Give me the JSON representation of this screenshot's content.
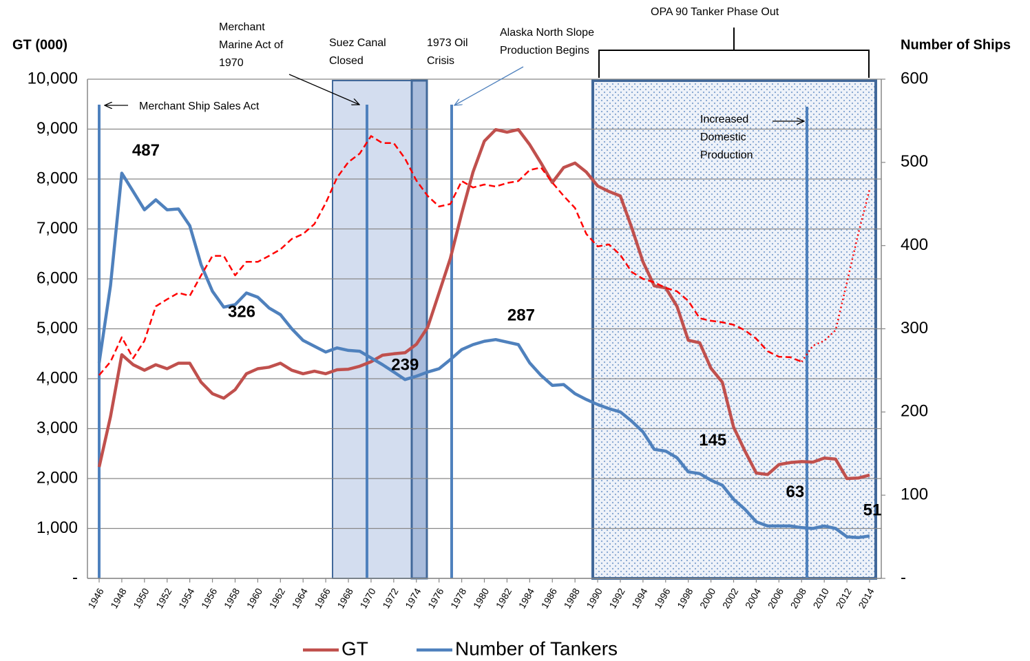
{
  "chart_data": {
    "type": "line",
    "y_label": "GT (000)",
    "y2_label": "Number of Ships",
    "categories": [
      "1946",
      null,
      "1948",
      null,
      "1950",
      null,
      "1952",
      null,
      "1954",
      null,
      "1956",
      null,
      "1958",
      null,
      "1960",
      null,
      "1962",
      null,
      "1964",
      null,
      "1966",
      null,
      "1968",
      null,
      "1970",
      null,
      "1972",
      null,
      "1974",
      null,
      "1976",
      null,
      "1978",
      null,
      "1980",
      null,
      "1982",
      null,
      "1984",
      null,
      "1986",
      null,
      "1988",
      null,
      "1990",
      null,
      "1992",
      null,
      "1994",
      null,
      "1996",
      null,
      "1998",
      null,
      "2000",
      null,
      "2002",
      null,
      "2004",
      null,
      "2006",
      null,
      "2008",
      null,
      "2010",
      null,
      "2012",
      null,
      "2014"
    ],
    "ylim": [
      0,
      10000
    ],
    "yticks": [
      {
        "value": 0,
        "label": "-"
      },
      {
        "value": 1000,
        "label": "1,000"
      },
      {
        "value": 2000,
        "label": "2,000"
      },
      {
        "value": 3000,
        "label": "3,000"
      },
      {
        "value": 4000,
        "label": "4,000"
      },
      {
        "value": 5000,
        "label": "5,000"
      },
      {
        "value": 6000,
        "label": "6,000"
      },
      {
        "value": 7000,
        "label": "7,000"
      },
      {
        "value": 8000,
        "label": "8,000"
      },
      {
        "value": 9000,
        "label": "9,000"
      },
      {
        "value": 10000,
        "label": "10,000"
      }
    ],
    "y2lim": [
      0,
      600
    ],
    "y2ticks": [
      {
        "value": 0,
        "label": "-"
      },
      100,
      200,
      300,
      400,
      500,
      600
    ],
    "grid": true,
    "legend": "bottom",
    "series": [
      {
        "name": "GT",
        "color": "#c0504d",
        "values": [
          2230,
          3240,
          4480,
          4280,
          4170,
          4280,
          4200,
          4310,
          4310,
          3930,
          3700,
          3610,
          3780,
          4100,
          4200,
          4230,
          4310,
          4170,
          4100,
          4150,
          4100,
          4180,
          4190,
          4250,
          4340,
          4470,
          4500,
          4520,
          4690,
          5030,
          5720,
          6410,
          7310,
          8140,
          8760,
          8990,
          8940,
          8990,
          8690,
          8320,
          7930,
          8230,
          8320,
          8140,
          7860,
          7750,
          7660,
          7030,
          6340,
          5860,
          5820,
          5450,
          4770,
          4720,
          4210,
          3930,
          3030,
          2550,
          2110,
          2080,
          2280,
          2320,
          2340,
          2330,
          2410,
          2390,
          2000,
          2010,
          2070
        ]
      },
      {
        "name": "Number of Tankers",
        "color": "#4f81bd",
        "axis": "y2",
        "labeled_points": [
          2,
          11,
          27,
          35,
          51,
          59,
          68
        ],
        "values": [
          259,
          352,
          487,
          465,
          443,
          455,
          443,
          444,
          424,
          377,
          345,
          326,
          329,
          343,
          338,
          325,
          317,
          300,
          286,
          279,
          272,
          277,
          274,
          273,
          265,
          257,
          248,
          239,
          243,
          248,
          252,
          263,
          275,
          281,
          285,
          287,
          284,
          281,
          259,
          244,
          232,
          233,
          222,
          215,
          209,
          204,
          200,
          189,
          176,
          155,
          153,
          145,
          128,
          126,
          118,
          112,
          95,
          83,
          68,
          63,
          63,
          63,
          61,
          60,
          63,
          60,
          50,
          49,
          51
        ]
      },
      {
        "color": "#ff0000",
        "style": "dashed",
        "dotted_from": "2008",
        "values": [
          4070,
          4340,
          4830,
          4410,
          4760,
          5450,
          5590,
          5720,
          5660,
          6070,
          6460,
          6460,
          6070,
          6340,
          6340,
          6460,
          6590,
          6800,
          6900,
          7100,
          7520,
          8030,
          8340,
          8510,
          8860,
          8720,
          8720,
          8410,
          7970,
          7660,
          7450,
          7500,
          7960,
          7830,
          7890,
          7850,
          7920,
          7960,
          8180,
          8230,
          7930,
          7660,
          7420,
          6900,
          6650,
          6690,
          6480,
          6140,
          6000,
          5930,
          5820,
          5750,
          5560,
          5210,
          5160,
          5130,
          5080,
          4970,
          4800,
          4550,
          4440,
          4430,
          4340,
          4660,
          4760,
          4970,
          5930,
          6900,
          7790
        ]
      }
    ],
    "annotations": [
      {
        "lines": [
          "Merchant Ship Sales Act"
        ]
      },
      {
        "lines": [
          "Merchant",
          "Marine Act of",
          "1970"
        ]
      },
      {
        "lines": [
          "Suez Canal",
          "Closed"
        ]
      },
      {
        "lines": [
          "1973 Oil",
          "Crisis"
        ]
      },
      {
        "lines": [
          "Alaska North Slope",
          "Production Begins"
        ]
      },
      {
        "lines": [
          "OPA 90 Tanker Phase Out"
        ]
      },
      {
        "lines": [
          "Increased",
          "Domestic",
          "Production"
        ]
      }
    ]
  }
}
